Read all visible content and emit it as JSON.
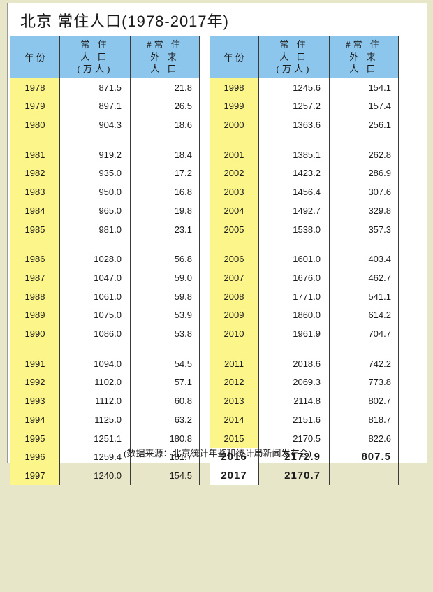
{
  "title": "北京 常住人口(1978-2017年)",
  "headers": {
    "year": "年  份",
    "pop_l1": "常   住",
    "pop_l2": "人   口",
    "pop_l3": "(万人)",
    "mig_l1": "#常  住",
    "mig_l2": "外   来",
    "mig_l3": "人   口"
  },
  "colors": {
    "header_bg": "#8dc6ec",
    "year_bg": "#fbf58a",
    "page_bg": "#e8e6c8",
    "border": "#3a3a3a"
  },
  "left": [
    {
      "y": "1978",
      "p": "871.5",
      "m": "21.8"
    },
    {
      "y": "1979",
      "p": "897.1",
      "m": "26.5"
    },
    {
      "y": "1980",
      "p": "904.3",
      "m": "18.6"
    },
    {
      "gap": true
    },
    {
      "y": "1981",
      "p": "919.2",
      "m": "18.4"
    },
    {
      "y": "1982",
      "p": "935.0",
      "m": "17.2"
    },
    {
      "y": "1983",
      "p": "950.0",
      "m": "16.8"
    },
    {
      "y": "1984",
      "p": "965.0",
      "m": "19.8"
    },
    {
      "y": "1985",
      "p": "981.0",
      "m": "23.1"
    },
    {
      "gap": true
    },
    {
      "y": "1986",
      "p": "1028.0",
      "m": "56.8"
    },
    {
      "y": "1987",
      "p": "1047.0",
      "m": "59.0"
    },
    {
      "y": "1988",
      "p": "1061.0",
      "m": "59.8"
    },
    {
      "y": "1989",
      "p": "1075.0",
      "m": "53.9"
    },
    {
      "y": "1990",
      "p": "1086.0",
      "m": "53.8"
    },
    {
      "gap": true
    },
    {
      "y": "1991",
      "p": "1094.0",
      "m": "54.5"
    },
    {
      "y": "1992",
      "p": "1102.0",
      "m": "57.1"
    },
    {
      "y": "1993",
      "p": "1112.0",
      "m": "60.8"
    },
    {
      "y": "1994",
      "p": "1125.0",
      "m": "63.2"
    },
    {
      "y": "1995",
      "p": "1251.1",
      "m": "180.8"
    },
    {
      "y": "1996",
      "p": "1259.4",
      "m": "181.7"
    },
    {
      "y": "1997",
      "p": "1240.0",
      "m": "154.5"
    }
  ],
  "right": [
    {
      "y": "1998",
      "p": "1245.6",
      "m": "154.1"
    },
    {
      "y": "1999",
      "p": "1257.2",
      "m": "157.4"
    },
    {
      "y": "2000",
      "p": "1363.6",
      "m": "256.1"
    },
    {
      "gap": true
    },
    {
      "y": "2001",
      "p": "1385.1",
      "m": "262.8"
    },
    {
      "y": "2002",
      "p": "1423.2",
      "m": "286.9"
    },
    {
      "y": "2003",
      "p": "1456.4",
      "m": "307.6"
    },
    {
      "y": "2004",
      "p": "1492.7",
      "m": "329.8"
    },
    {
      "y": "2005",
      "p": "1538.0",
      "m": "357.3"
    },
    {
      "gap": true
    },
    {
      "y": "2006",
      "p": "1601.0",
      "m": "403.4"
    },
    {
      "y": "2007",
      "p": "1676.0",
      "m": "462.7"
    },
    {
      "y": "2008",
      "p": "1771.0",
      "m": "541.1"
    },
    {
      "y": "2009",
      "p": "1860.0",
      "m": "614.2"
    },
    {
      "y": "2010",
      "p": "1961.9",
      "m": "704.7"
    },
    {
      "gap": true
    },
    {
      "y": "2011",
      "p": "2018.6",
      "m": "742.2"
    },
    {
      "y": "2012",
      "p": "2069.3",
      "m": "773.8"
    },
    {
      "y": "2013",
      "p": "2114.8",
      "m": "802.7"
    },
    {
      "y": "2014",
      "p": "2151.6",
      "m": "818.7"
    },
    {
      "y": "2015",
      "p": "2170.5",
      "m": "822.6"
    },
    {
      "y": "2016",
      "p": "2172.9",
      "m": "807.5",
      "bold": true
    },
    {
      "y": "2017",
      "p": "2170.7",
      "m": "",
      "bold": true
    }
  ],
  "footnote": "(数据来源：北京统计年鉴和统计局新闻发布会)"
}
